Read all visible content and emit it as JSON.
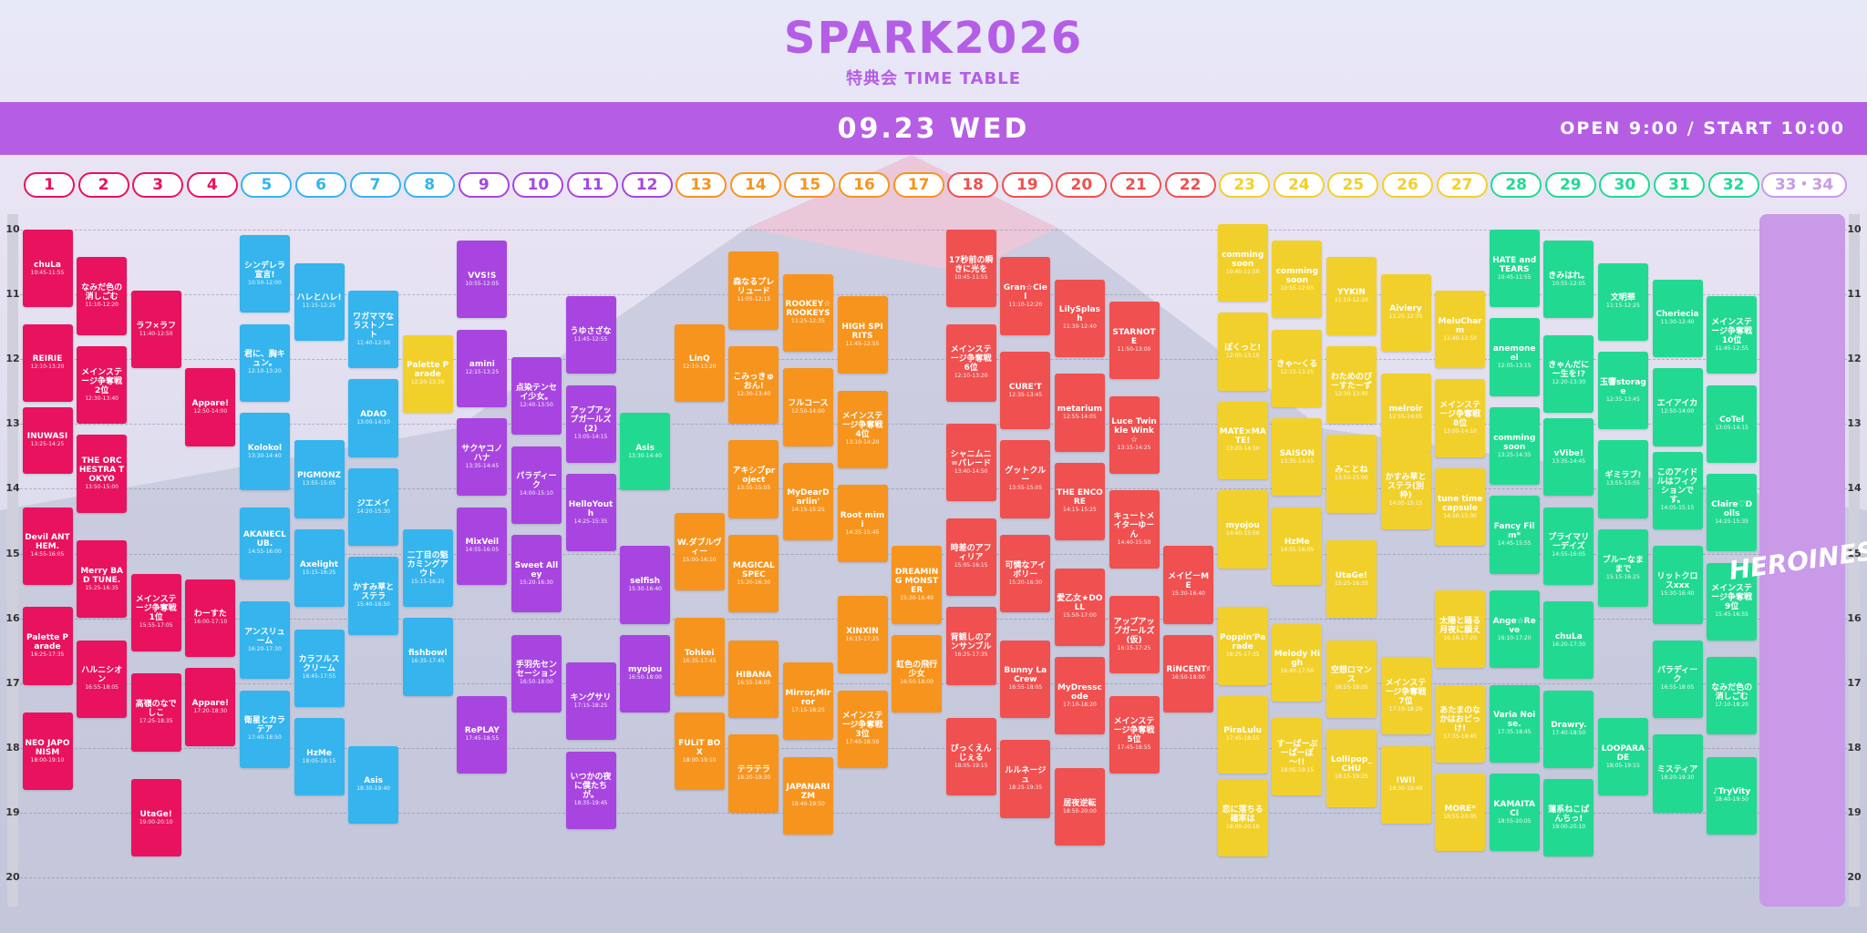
{
  "header": {
    "logo": "SPARK2026",
    "subtitle": "特典会 TIME TABLE",
    "date": "09.23 WED",
    "hours_info": "OPEN 9:00 / START 10:00"
  },
  "hours": [
    "10",
    "11",
    "12",
    "13",
    "14",
    "15",
    "16",
    "17",
    "18",
    "19",
    "20"
  ],
  "columns": [
    {
      "label": "1",
      "color": "#e8125e",
      "blocks": [
        {
          "name": "chuLa",
          "time": "10:45-11:55"
        },
        {
          "name": "REIRIE",
          "time": "12:10-13:20"
        },
        {
          "name": "INUWASI",
          "time": "13:25-14:25"
        },
        {
          "name": "Devil ANTHEM.",
          "time": "14:55-16:05"
        },
        {
          "name": "Palette Parade",
          "time": "16:25-17:35"
        },
        {
          "name": "NEO JAPONISM",
          "time": "18:00-19:10"
        }
      ]
    },
    {
      "label": "2",
      "color": "#e8125e",
      "blocks": [
        {
          "name": "なみだ色の消しごむ",
          "time": "11:10-12:20"
        },
        {
          "name": "メインステージ争奪戦 2位",
          "time": "12:30-13:40"
        },
        {
          "name": "THE ORCHESTRA TOKYO",
          "time": "13:50-15:00"
        },
        {
          "name": "Merry BAD TUNE.",
          "time": "15:25-16:35"
        },
        {
          "name": "ハルニシオン",
          "time": "16:55-18:05"
        }
      ]
    },
    {
      "label": "3",
      "color": "#e8125e",
      "blocks": [
        {
          "name": "ラフ×ラフ",
          "time": "11:40-12:50"
        },
        {
          "name": "メインステージ争奪戦 1位",
          "time": "15:55-17:05"
        },
        {
          "name": "高嶺のなでしこ",
          "time": "17:25-18:35"
        },
        {
          "name": "UtaGe!",
          "time": "19:00-20:10"
        }
      ]
    },
    {
      "label": "4",
      "color": "#e8125e",
      "blocks": [
        {
          "name": "Appare!",
          "time": "12:50-14:00"
        },
        {
          "name": "わーすた",
          "time": "16:00-17:10"
        },
        {
          "name": "Appare!",
          "time": "17:20-18:30"
        }
      ]
    },
    {
      "label": "5",
      "color": "#35b4ee",
      "blocks": [
        {
          "name": "シンデレラ宣言!",
          "time": "10:50-12:00"
        },
        {
          "name": "君に、胸キュン。",
          "time": "12:10-13:20"
        },
        {
          "name": "Kolokol",
          "time": "13:30-14:40"
        },
        {
          "name": "AKANECLUB.",
          "time": "14:55-16:00"
        },
        {
          "name": "アンスリューム",
          "time": "16:20-17:30"
        },
        {
          "name": "衛星とカラテア",
          "time": "17:40-18:50"
        }
      ]
    },
    {
      "label": "6",
      "color": "#35b4ee",
      "blocks": [
        {
          "name": "ハレとハレ!",
          "time": "11:15-12:25"
        },
        {
          "name": "PIGMONZ",
          "time": "13:55-15:05"
        },
        {
          "name": "Axelight",
          "time": "15:15-16:25"
        },
        {
          "name": "カラフルスクリーム",
          "time": "16:45-17:55"
        },
        {
          "name": "HzMe",
          "time": "18:05-19:15"
        }
      ]
    },
    {
      "label": "7",
      "color": "#35b4ee",
      "blocks": [
        {
          "name": "ワガママなラストノート",
          "time": "11:40-12:50"
        },
        {
          "name": "ADAO",
          "time": "13:00-14:10"
        },
        {
          "name": "ジエメイ",
          "time": "14:20-15:30"
        },
        {
          "name": "かすみ草とステラ",
          "time": "15:40-16:50"
        },
        {
          "name": "Asis",
          "time": "18:30-19:40"
        }
      ]
    },
    {
      "label": "8",
      "color": "#35b4ee",
      "blocks": [
        {
          "name": "Palette Parade",
          "time": "12:20-13:30",
          "color": "#f2d02b"
        },
        {
          "name": "二丁目の魁カミングアウト",
          "time": "15:15-16:25"
        },
        {
          "name": "fishbowl",
          "time": "16:35-17:45"
        }
      ]
    },
    {
      "label": "9",
      "color": "#a845e0",
      "blocks": [
        {
          "name": "VVS!S",
          "time": "10:55-12:05"
        },
        {
          "name": "amini",
          "time": "12:15-13:25"
        },
        {
          "name": "サクヤコノハナ",
          "time": "13:35-14:45"
        },
        {
          "name": "MixVeil",
          "time": "14:55-16:05"
        },
        {
          "name": "RePLAY",
          "time": "17:45-18:55"
        }
      ]
    },
    {
      "label": "10",
      "color": "#a845e0",
      "blocks": [
        {
          "name": "点染テンセイ少女。",
          "time": "12:40-13:50"
        },
        {
          "name": "パラディーク",
          "time": "14:00-15:10"
        },
        {
          "name": "Sweet Alley",
          "time": "15:20-16:30"
        },
        {
          "name": "手羽先センセーション",
          "time": "16:50-18:00"
        }
      ]
    },
    {
      "label": "11",
      "color": "#a845e0",
      "blocks": [
        {
          "name": "うゆさざな",
          "time": "11:45-12:55"
        },
        {
          "name": "アップアップガールズ(2)",
          "time": "13:05-14:15"
        },
        {
          "name": "HelloYouth",
          "time": "14:25-15:35"
        },
        {
          "name": "キングサリ",
          "time": "17:15-18:25"
        },
        {
          "name": "いつかの夜に僕たちが。",
          "time": "18:35-19:45"
        }
      ]
    },
    {
      "label": "12",
      "color": "#a845e0",
      "blocks": [
        {
          "name": "Asis",
          "time": "13:30-14:40",
          "color": "#22d992"
        },
        {
          "name": "selfish",
          "time": "15:30-16:40"
        },
        {
          "name": "myojou",
          "time": "16:50-18:00"
        }
      ]
    },
    {
      "label": "13",
      "color": "#f7941d",
      "blocks": [
        {
          "name": "LinQ",
          "time": "12:10-13:20"
        },
        {
          "name": "W.ダブルヴィー",
          "time": "15:00-16:10"
        },
        {
          "name": "Tohkei",
          "time": "16:35-17:45"
        },
        {
          "name": "FULiT BOX",
          "time": "18:00-19:10"
        }
      ]
    },
    {
      "label": "14",
      "color": "#f7941d",
      "blocks": [
        {
          "name": "森なるプレリュード",
          "time": "11:05-12:15"
        },
        {
          "name": "こみっきゅおん!",
          "time": "12:30-13:40"
        },
        {
          "name": "アキシブproject",
          "time": "13:55-15:05"
        },
        {
          "name": "MAGICAL SPEC",
          "time": "15:20-16:30"
        },
        {
          "name": "HIBANA",
          "time": "16:55-18:05"
        },
        {
          "name": "テラテラ",
          "time": "18:20-19:30"
        }
      ]
    },
    {
      "label": "15",
      "color": "#f7941d",
      "blocks": [
        {
          "name": "ROOKEY☆ROOKEYS",
          "time": "11:25-12:35"
        },
        {
          "name": "フルコース",
          "time": "12:50-14:00"
        },
        {
          "name": "MyDearDarlin'",
          "time": "14:15-15:25"
        },
        {
          "name": "Mirror,Mirror",
          "time": "17:15-18:25"
        },
        {
          "name": "JAPANARIZM",
          "time": "18:40-19:50"
        }
      ]
    },
    {
      "label": "16",
      "color": "#f7941d",
      "blocks": [
        {
          "name": "HIGH SPIRITS",
          "time": "11:45-12:55"
        },
        {
          "name": "メインステージ争奪戦 4位",
          "time": "13:10-14:20"
        },
        {
          "name": "Root mimi",
          "time": "14:35-15:45"
        },
        {
          "name": "XINXIN",
          "time": "16:15-17:25"
        },
        {
          "name": "メインステージ争奪戦 3位",
          "time": "17:40-18:50"
        }
      ]
    },
    {
      "label": "17",
      "color": "#f7941d",
      "blocks": [
        {
          "name": "DREAMING MONSTER",
          "time": "15:30-16:40"
        },
        {
          "name": "虹色の飛行少女",
          "time": "16:50-18:00"
        }
      ]
    },
    {
      "label": "18",
      "color": "#f0504f",
      "blocks": [
        {
          "name": "17秒前の瞬きに光を",
          "time": "10:45-11:55"
        },
        {
          "name": "メインステージ争奪戦 6位",
          "time": "12:10-13:20"
        },
        {
          "name": "シャニムニ=パレード",
          "time": "13:40-14:50"
        },
        {
          "name": "時差のアフィリア",
          "time": "15:05-16:15"
        },
        {
          "name": "背観しのアンサンブル",
          "time": "16:25-17:35"
        },
        {
          "name": "ぴっくえんじぇる",
          "time": "18:05-19:15"
        }
      ]
    },
    {
      "label": "19",
      "color": "#f0504f",
      "blocks": [
        {
          "name": "Gran☆Ciel",
          "time": "11:10-12:20"
        },
        {
          "name": "CURE'T",
          "time": "12:35-13:45"
        },
        {
          "name": "グットクルー",
          "time": "13:55-15:05"
        },
        {
          "name": "可憐なアイボリー",
          "time": "15:20-16:30"
        },
        {
          "name": "Bunny La Crew",
          "time": "16:55-18:05"
        },
        {
          "name": "ルルネージュ",
          "time": "18:25-19:35"
        }
      ]
    },
    {
      "label": "20",
      "color": "#f0504f",
      "blocks": [
        {
          "name": "LilySplash",
          "time": "11:30-12:40"
        },
        {
          "name": "metarium",
          "time": "12:55-14:05"
        },
        {
          "name": "THE ENCORE",
          "time": "14:15-15:25"
        },
        {
          "name": "愛乙女★DOLL",
          "time": "15:50-17:00"
        },
        {
          "name": "MyDresscode",
          "time": "17:10-18:20"
        },
        {
          "name": "居夜逆転",
          "time": "18:50-20:00"
        }
      ]
    },
    {
      "label": "21",
      "color": "#f0504f",
      "blocks": [
        {
          "name": "STARNOTE",
          "time": "11:50-13:00"
        },
        {
          "name": "Luce Twinkle Wink☆",
          "time": "13:15-14:25"
        },
        {
          "name": "キュートメイタ一ゆーん",
          "time": "14:40-15:50"
        },
        {
          "name": "アップアップガールズ(仮)",
          "time": "16:15-17:25"
        },
        {
          "name": "メインステージ争奪戦 5位",
          "time": "17:45-18:55"
        }
      ]
    },
    {
      "label": "22",
      "color": "#f0504f",
      "blocks": [
        {
          "name": "メイビーME",
          "time": "15:30-16:40"
        },
        {
          "name": "RiNCENT♯",
          "time": "16:50-18:00"
        }
      ]
    },
    {
      "label": "23",
      "color": "#f2d02b",
      "blocks": [
        {
          "name": "comming soon",
          "time": "10:40-11:50"
        },
        {
          "name": "ぽくっと!",
          "time": "12:00-13:10"
        },
        {
          "name": "MATE×MATE!",
          "time": "13:20-14:30"
        },
        {
          "name": "myojou",
          "time": "14:40-15:50"
        },
        {
          "name": "Poppin'Parade",
          "time": "16:25-17:35"
        },
        {
          "name": "PiraLulu",
          "time": "17:45-18:55"
        },
        {
          "name": "恋に落ちる確率は",
          "time": "19:00-20:10"
        }
      ]
    },
    {
      "label": "24",
      "color": "#f2d02b",
      "blocks": [
        {
          "name": "comming soon",
          "time": "10:55-12:05"
        },
        {
          "name": "きゃ～くる",
          "time": "12:15-13:25"
        },
        {
          "name": "SAISON",
          "time": "13:35-14:45"
        },
        {
          "name": "HzMe",
          "time": "14:55-16:05"
        },
        {
          "name": "Melody High",
          "time": "16:40-17:50"
        },
        {
          "name": "すーぱーぷーぱーぽ～!!",
          "time": "18:05-19:15"
        }
      ]
    },
    {
      "label": "25",
      "color": "#f2d02b",
      "blocks": [
        {
          "name": "YYKIN",
          "time": "11:10-12:20"
        },
        {
          "name": "わためのぴーすたーず",
          "time": "12:30-13:40"
        },
        {
          "name": "みことね",
          "time": "13:50-15:00"
        },
        {
          "name": "UtaGe!",
          "time": "15:25-16:35"
        },
        {
          "name": "空想ロマンス",
          "time": "16:55-18:05"
        },
        {
          "name": "Lollipop_CHU",
          "time": "18:15-19:25"
        }
      ]
    },
    {
      "label": "26",
      "color": "#f2d02b",
      "blocks": [
        {
          "name": "Aiviery",
          "time": "11:25-12:35"
        },
        {
          "name": "melroir",
          "time": "12:55-14:05"
        },
        {
          "name": "かすみ草とステラ(別枠)",
          "time": "14:05-15:15"
        },
        {
          "name": "メインステージ争奪戦 7位",
          "time": "17:10-18:20"
        },
        {
          "name": "!WI!",
          "time": "18:30-19:40"
        }
      ]
    },
    {
      "label": "27",
      "color": "#f2d02b",
      "blocks": [
        {
          "name": "MeluCharm",
          "time": "11:40-12:50"
        },
        {
          "name": "メインステージ争奪戦 8位",
          "time": "13:00-14:10"
        },
        {
          "name": "tune time capsule",
          "time": "14:20-15:30"
        },
        {
          "name": "太陽と踊る月夜に願え",
          "time": "16:10-17:20"
        },
        {
          "name": "あたまのなかはおピっけ!",
          "time": "17:35-18:45"
        },
        {
          "name": "MORE*",
          "time": "18:55-20:05"
        }
      ]
    },
    {
      "label": "28",
      "color": "#22d992",
      "blocks": [
        {
          "name": "HATE and TEARS",
          "time": "10:45-11:55"
        },
        {
          "name": "anemoneel",
          "time": "12:05-13:15"
        },
        {
          "name": "comming soon",
          "time": "13:25-14:35"
        },
        {
          "name": "Fancy Film*",
          "time": "14:45-15:55"
        },
        {
          "name": "Ange☆Reve",
          "time": "16:10-17:20"
        },
        {
          "name": "Varia Noise.",
          "time": "17:35-18:45"
        },
        {
          "name": "KAMAITACI",
          "time": "18:55-20:05"
        }
      ]
    },
    {
      "label": "29",
      "color": "#22d992",
      "blocks": [
        {
          "name": "きみはれ。",
          "time": "10:55-12:05"
        },
        {
          "name": "きゃんだにー生を!?",
          "time": "12:20-13:30"
        },
        {
          "name": "vVibe!",
          "time": "13:35-14:45"
        },
        {
          "name": "プライマリーデイズ",
          "time": "14:55-16:05"
        },
        {
          "name": "chuLa",
          "time": "16:20-17:30"
        },
        {
          "name": "Drawry.",
          "time": "17:40-18:50"
        },
        {
          "name": "蓮系ねこぱんちっ!",
          "time": "19:00-20:10"
        }
      ]
    },
    {
      "label": "30",
      "color": "#22d992",
      "blocks": [
        {
          "name": "文明華",
          "time": "11:15-12:25"
        },
        {
          "name": "玉響storage",
          "time": "12:35-13:45"
        },
        {
          "name": "ギミラブ!",
          "time": "13:55-15:05"
        },
        {
          "name": "ブルーなままで",
          "time": "15:15-16:25"
        },
        {
          "name": "LOOPARADE",
          "time": "18:05-19:15"
        }
      ]
    },
    {
      "label": "31",
      "color": "#22d992",
      "blocks": [
        {
          "name": "Cheriecia",
          "time": "11:30-12:40"
        },
        {
          "name": "エイアイカ",
          "time": "12:50-14:00"
        },
        {
          "name": "このアイドルはフィクションです。",
          "time": "14:05-15:15"
        },
        {
          "name": "リットクロスxxx",
          "time": "15:30-16:40"
        },
        {
          "name": "パラディーク",
          "time": "16:55-18:05"
        },
        {
          "name": "ミスティア",
          "time": "18:20-19:30"
        }
      ]
    },
    {
      "label": "32",
      "color": "#22d992",
      "blocks": [
        {
          "name": "メインステージ争奪戦 10位",
          "time": "11:45-12:55"
        },
        {
          "name": "CoTel",
          "time": "13:05-14:15"
        },
        {
          "name": "Claire♡Dolls",
          "time": "14:25-15:35"
        },
        {
          "name": "メインステージ争奪戦 9位",
          "time": "15:45-16:55"
        },
        {
          "name": "なみだ色の消しごむ",
          "time": "17:10-18:20"
        },
        {
          "name": "♪TryVity",
          "time": "18:40-19:50"
        }
      ]
    }
  ],
  "special": {
    "label": "33・34",
    "name": "HEROINES",
    "color": "#c99ae8"
  }
}
